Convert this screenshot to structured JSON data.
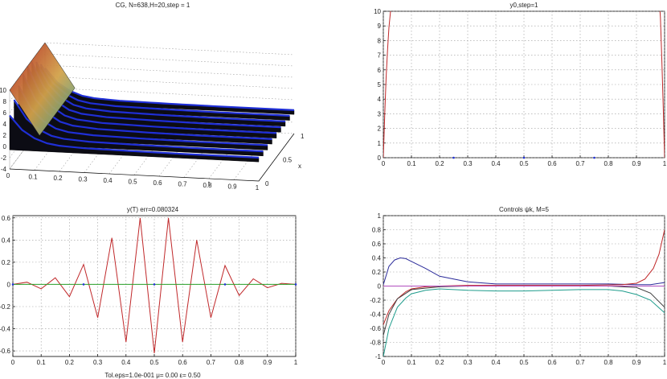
{
  "figure": {
    "panels": [
      {
        "id": "surface",
        "title": "CG, N=638,H=20,step = 1",
        "xlabel": "t",
        "ylabel": "x",
        "xticks": [
          "0",
          "0.1",
          "0.2",
          "0.3",
          "0.4",
          "0.5",
          "0.6",
          "0.7",
          "0.8",
          "0.9",
          "1"
        ],
        "yticks": [
          "0",
          "0.5",
          "1"
        ],
        "zticks": [
          "-4",
          "-2",
          "0",
          "2",
          "4",
          "6",
          "8",
          "10"
        ]
      },
      {
        "id": "y0",
        "title": "y0,step=1",
        "xticks": [
          "0",
          "0.1",
          "0.2",
          "0.3",
          "0.4",
          "0.5",
          "0.6",
          "0.7",
          "0.8",
          "0.9",
          "1"
        ],
        "yticks": [
          "0",
          "1",
          "2",
          "3",
          "4",
          "5",
          "6",
          "7",
          "8",
          "9",
          "10"
        ]
      },
      {
        "id": "yT",
        "title": "y(T) err=0.080324",
        "footer": "Tol.eps=1.0e-001  μ=  0.00  ε=  0.50",
        "xticks": [
          "0",
          "0.1",
          "0.2",
          "0.3",
          "0.4",
          "0.5",
          "0.6",
          "0.7",
          "0.8",
          "0.9",
          "1"
        ],
        "yticks": [
          "-0.6",
          "-0.4",
          "-0.2",
          "0",
          "0.2",
          "0.4",
          "0.6"
        ]
      },
      {
        "id": "controls",
        "title": "Controls ψk, M=5",
        "xticks": [
          "0",
          "0.1",
          "0.2",
          "0.3",
          "0.4",
          "0.5",
          "0.6",
          "0.7",
          "0.8",
          "0.9",
          "1"
        ],
        "yticks": [
          "-1",
          "-0.8",
          "-0.6",
          "-0.4",
          "-0.2",
          "0",
          "0.2",
          "0.4",
          "0.6",
          "0.8",
          "1"
        ]
      }
    ]
  },
  "chart_data": [
    {
      "type": "area",
      "title": "CG, N=638,H=20,step = 1",
      "xlabel": "t",
      "ylabel": "x",
      "xlim": [
        0,
        1
      ],
      "ylim": [
        0,
        1
      ],
      "zlim": [
        -4,
        10
      ],
      "description_series": [
        {
          "t": [
            0,
            0.05,
            0.1,
            0.15,
            0.2,
            0.3,
            0.5,
            0.7,
            1.0
          ],
          "z_peak": [
            10,
            5.5,
            3,
            1.6,
            1.0,
            0.6,
            0.4,
            0.3,
            0.3
          ]
        }
      ],
      "colors": {
        "edge": "#1f2fd6",
        "mesh": "#000000",
        "hot": "#b1201c",
        "mid": "#3aa39a"
      }
    },
    {
      "type": "line",
      "title": "y0,step=1",
      "xlim": [
        0,
        1
      ],
      "ylim": [
        0,
        10
      ],
      "series": [
        {
          "color": "#c0282a",
          "x": [
            0,
            0.005,
            0.01,
            0.015,
            0.02,
            0.025,
            0.03,
            0.98,
            0.985,
            0.99,
            0.995,
            1.0
          ],
          "y": [
            0,
            3,
            5.5,
            7.4,
            8.9,
            9.9,
            11,
            11,
            9.6,
            6.8,
            3.5,
            0
          ]
        }
      ],
      "markers": {
        "x": [
          0.25,
          0.5,
          0.75
        ],
        "y": [
          0,
          0,
          0
        ]
      }
    },
    {
      "type": "line",
      "title": "y(T) err=0.080324",
      "xlim": [
        0,
        1
      ],
      "ylim": [
        -0.65,
        0.62
      ],
      "series": [
        {
          "color": "#c0282a",
          "x": [
            0,
            0.05,
            0.1,
            0.15,
            0.2,
            0.25,
            0.3,
            0.35,
            0.4,
            0.45,
            0.5,
            0.55,
            0.6,
            0.65,
            0.7,
            0.75,
            0.8,
            0.85,
            0.9,
            0.95,
            1.0
          ],
          "y": [
            0,
            0.02,
            -0.04,
            0.06,
            -0.11,
            0.18,
            -0.3,
            0.42,
            -0.52,
            0.6,
            -0.62,
            0.6,
            -0.52,
            0.4,
            -0.3,
            0.17,
            -0.1,
            0.05,
            -0.03,
            0.01,
            0
          ]
        },
        {
          "color": "#2aa02a",
          "x": [
            0,
            1
          ],
          "y": [
            0,
            0
          ]
        }
      ],
      "markers": {
        "x": [
          0,
          0.25,
          0.5,
          0.75,
          1.0
        ],
        "y": [
          0,
          0,
          0,
          0,
          0
        ]
      }
    },
    {
      "type": "line",
      "title": "Controls ψk, M=5",
      "xlim": [
        0,
        1
      ],
      "ylim": [
        -1,
        1
      ],
      "series": [
        {
          "color": "#2b2b9a",
          "x": [
            0,
            0.02,
            0.04,
            0.06,
            0.08,
            0.1,
            0.15,
            0.2,
            0.3,
            0.4,
            0.5,
            0.6,
            0.7,
            0.8,
            0.9,
            0.95,
            1.0
          ],
          "y": [
            0.02,
            0.28,
            0.37,
            0.4,
            0.39,
            0.35,
            0.25,
            0.14,
            0.06,
            0.03,
            0.03,
            0.03,
            0.03,
            0.03,
            0.02,
            0.02,
            0.05
          ]
        },
        {
          "color": "#c0282a",
          "x": [
            0,
            0.02,
            0.05,
            0.08,
            0.1,
            0.15,
            0.2,
            0.3,
            0.5,
            0.7,
            0.85,
            0.9,
            0.93,
            0.96,
            0.98,
            1.0
          ],
          "y": [
            -0.55,
            -0.35,
            -0.18,
            -0.08,
            -0.04,
            -0.01,
            0,
            0.01,
            0.01,
            0.01,
            0.02,
            0.04,
            0.1,
            0.25,
            0.45,
            0.8
          ]
        },
        {
          "color": "#1e9c8c",
          "x": [
            0,
            0.02,
            0.05,
            0.08,
            0.1,
            0.15,
            0.2,
            0.3,
            0.4,
            0.5,
            0.6,
            0.7,
            0.8,
            0.85,
            0.9,
            0.95,
            1.0
          ],
          "y": [
            -1.0,
            -0.6,
            -0.3,
            -0.17,
            -0.11,
            -0.06,
            -0.04,
            -0.06,
            -0.07,
            -0.07,
            -0.06,
            -0.05,
            -0.05,
            -0.07,
            -0.12,
            -0.2,
            -0.38
          ]
        },
        {
          "color": "#3f3f3f",
          "x": [
            0,
            0.02,
            0.05,
            0.1,
            0.2,
            0.3,
            0.5,
            0.7,
            0.8,
            0.9,
            0.95,
            1.0
          ],
          "y": [
            -0.7,
            -0.4,
            -0.18,
            -0.05,
            -0.01,
            0,
            0,
            0,
            0,
            -0.02,
            -0.1,
            -0.3
          ]
        },
        {
          "color": "#b24dbf",
          "x": [
            0,
            1
          ],
          "y": [
            0,
            0
          ]
        }
      ]
    }
  ]
}
